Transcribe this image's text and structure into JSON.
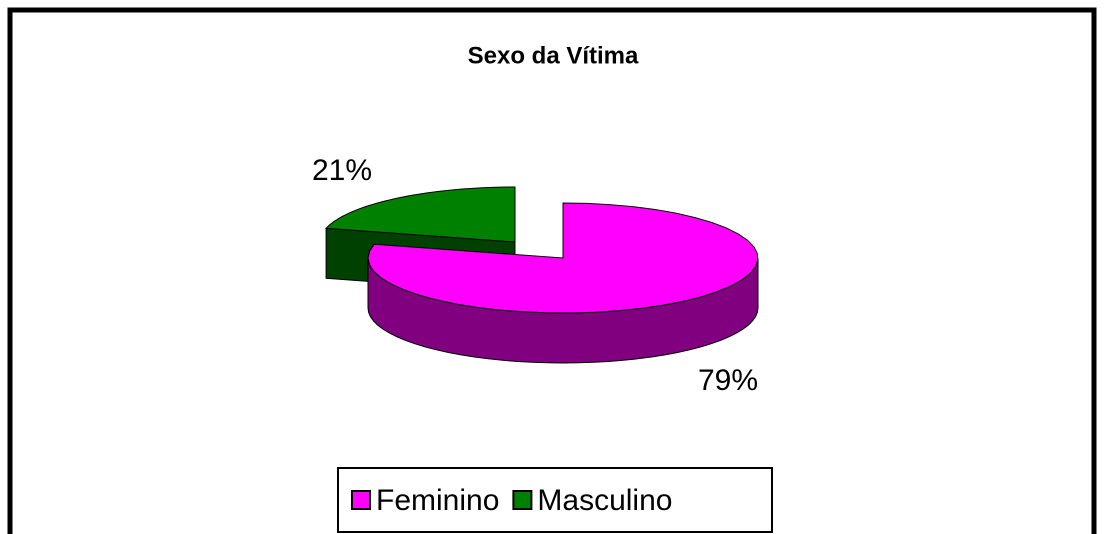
{
  "chart_data": {
    "type": "pie3d",
    "title": "Sexo da Vítima",
    "categories": [
      "Feminino",
      "Masculino"
    ],
    "values": [
      79,
      21
    ],
    "value_labels": [
      "79%",
      "21%"
    ],
    "colors": [
      "#ff00ff",
      "#008000"
    ],
    "side_colors": [
      "#800080",
      "#004000"
    ],
    "legend": "bottom"
  }
}
